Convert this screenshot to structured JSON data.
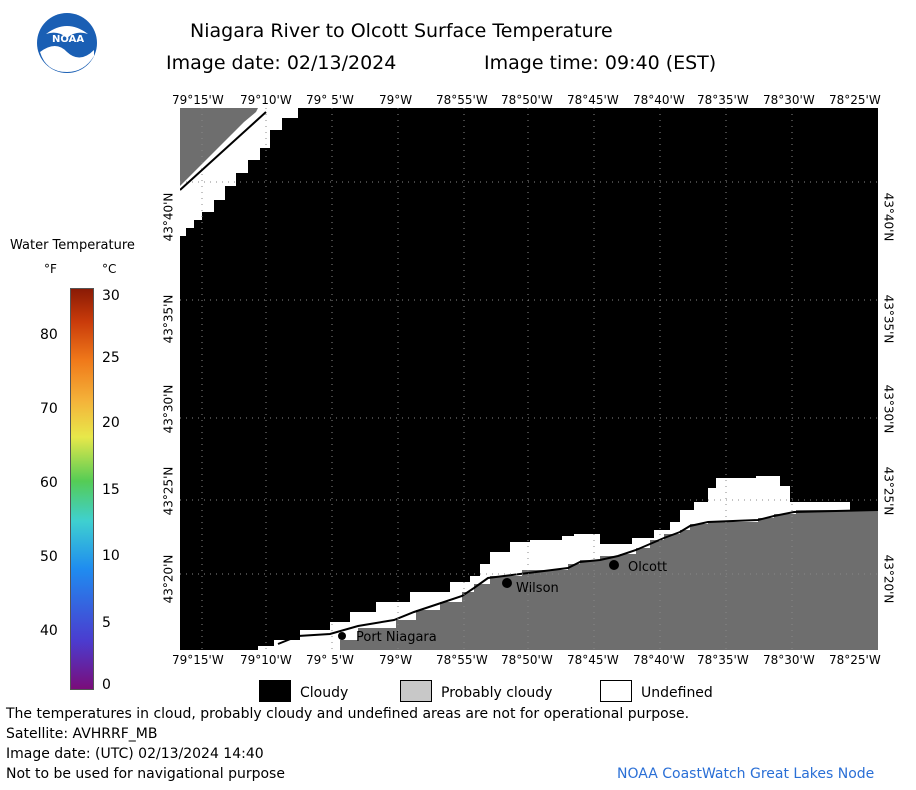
{
  "header": {
    "title": "Niagara River to Olcott Surface Temperature",
    "image_date": "Image date: 02/13/2024",
    "image_time": "Image time: 09:40 (EST)"
  },
  "logo": {
    "text": "NOAA",
    "color": "#1a5fb4"
  },
  "colorbar": {
    "title": "Water Temperature",
    "f_label": "°F",
    "c_label": "°C",
    "f_ticks": [
      "80",
      "70",
      "60",
      "50",
      "40"
    ],
    "c_ticks": [
      "30",
      "25",
      "20",
      "15",
      "10",
      "5",
      "0"
    ]
  },
  "map": {
    "lon_labels": [
      "79°15'W",
      "79°10'W",
      "79° 5'W",
      "79°W",
      "78°55'W",
      "78°50'W",
      "78°45'W",
      "78°40'W",
      "78°35'W",
      "78°30'W",
      "78°25'W"
    ],
    "lat_labels": [
      "43°40'N",
      "43°35'N",
      "43°30'N",
      "43°25'N",
      "43°20'N"
    ],
    "places": [
      {
        "name": "Port Niagara"
      },
      {
        "name": "Wilson"
      },
      {
        "name": "Olcott"
      }
    ],
    "colors": {
      "cloudy": "#000000",
      "land": "#6e6e6e",
      "undefined": "#ffffff"
    }
  },
  "legend": {
    "cloudy": "Cloudy",
    "probably_cloudy": "Probably cloudy",
    "undefined": "Undefined"
  },
  "footer": {
    "note": "The temperatures in cloud, probably cloudy and undefined areas are not for operational purpose.",
    "satellite": "Satellite: AVHRRF_MB",
    "utc_date": "Image date: (UTC) 02/13/2024  14:40",
    "nav_warning": "Not to be used for navigational purpose",
    "credit": "NOAA CoastWatch Great Lakes Node"
  }
}
